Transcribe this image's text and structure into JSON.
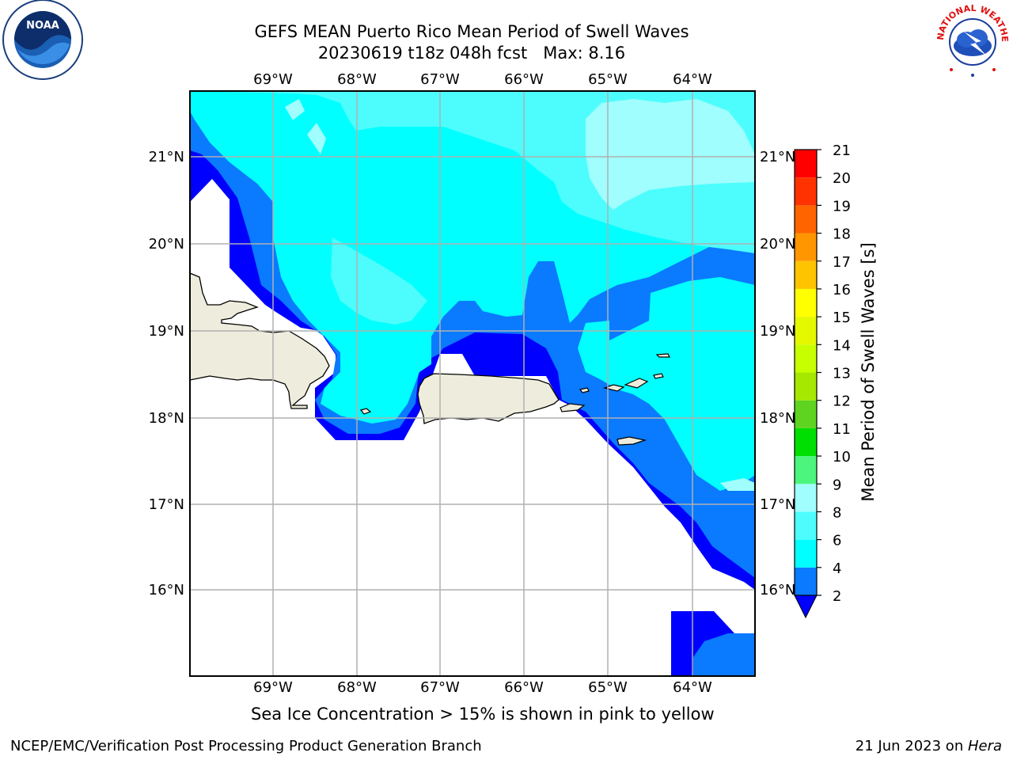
{
  "header": {
    "title_line1": "GEFS MEAN Puerto Rico Mean Period of Swell Waves",
    "title_line2": "20230619 t18z 048h fcst   Max: 8.16"
  },
  "map": {
    "lon_labels": [
      "69°W",
      "68°W",
      "67°W",
      "66°W",
      "65°W",
      "64°W"
    ],
    "lat_labels": [
      "21°N",
      "20°N",
      "19°N",
      "18°N",
      "17°N",
      "16°N"
    ],
    "land_color": "#eeecdc",
    "grid_color": "#b0b0b0"
  },
  "colorbar": {
    "label": "Mean Period of Swell Waves [s]",
    "ticks": [
      "2",
      "4",
      "6",
      "8",
      "9",
      "10",
      "11",
      "12",
      "13",
      "14",
      "15",
      "16",
      "17",
      "18",
      "19",
      "20",
      "21"
    ],
    "colors": [
      "#0000ff",
      "#0a7aff",
      "#00ffff",
      "#4dfdfd",
      "#a0fefe",
      "#4cf57c",
      "#00e000",
      "#5ed420",
      "#a6e800",
      "#c8ff00",
      "#e4f800",
      "#ffff00",
      "#ffc400",
      "#ff9600",
      "#ff6400",
      "#ff3200",
      "#ff0000"
    ]
  },
  "note": "Sea Ice Concentration > 15% is shown in pink to yellow",
  "footer": {
    "left": "NCEP/EMC/Verification Post Processing Product Generation Branch",
    "right_date": "21 Jun 2023 on ",
    "right_host": "Hera"
  },
  "logos": {
    "noaa_text": "NOAA",
    "nws_text": "NATIONAL WEATHER SERVICE"
  }
}
